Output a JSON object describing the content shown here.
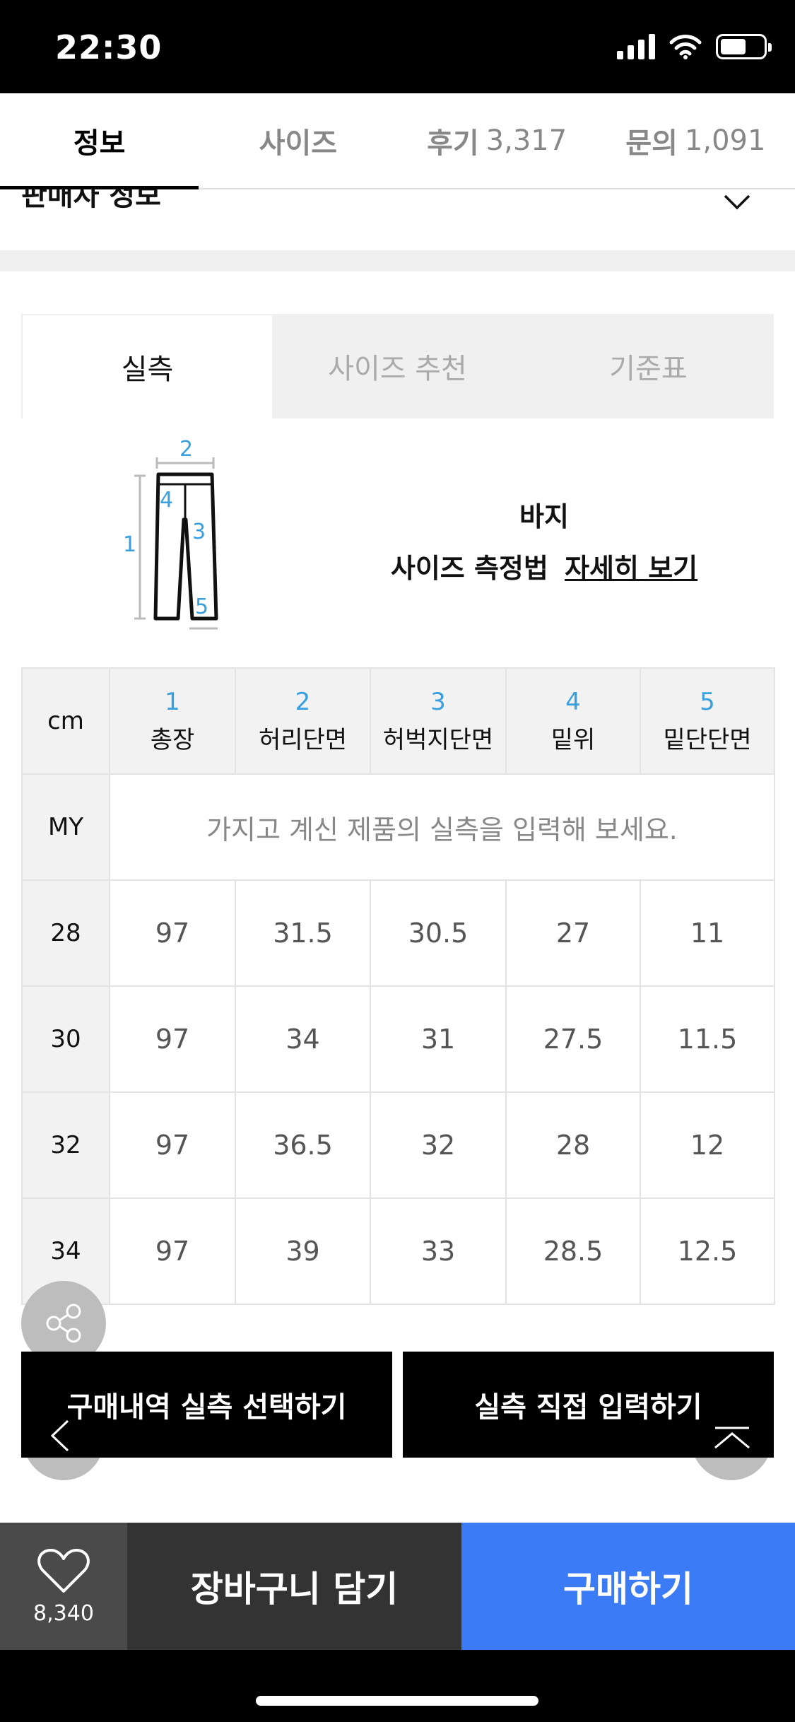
{
  "status": {
    "time": "22:30"
  },
  "tabs": [
    {
      "label": "정보",
      "count": ""
    },
    {
      "label": "사이즈",
      "count": ""
    },
    {
      "label": "후기",
      "count": "3,317"
    },
    {
      "label": "문의",
      "count": "1,091"
    }
  ],
  "partial_section_title": "판매자 정보",
  "size_tabs": [
    "실측",
    "사이즈 추천",
    "기준표"
  ],
  "size_guide": {
    "type": "바지",
    "measure_label": "사이즈 측정법",
    "measure_link": "자세히 보기"
  },
  "diagram_labels": [
    "1",
    "2",
    "3",
    "4",
    "5"
  ],
  "table": {
    "unit_label": "cm",
    "columns": [
      {
        "num": "1",
        "name": "총장"
      },
      {
        "num": "2",
        "name": "허리단면"
      },
      {
        "num": "3",
        "name": "허벅지단면"
      },
      {
        "num": "4",
        "name": "밑위"
      },
      {
        "num": "5",
        "name": "밑단단면"
      }
    ],
    "my_label": "MY",
    "my_placeholder": "가지고 계신 제품의 실측을 입력해 보세요.",
    "rows": [
      {
        "size": "28",
        "values": [
          "97",
          "31.5",
          "30.5",
          "27",
          "11"
        ]
      },
      {
        "size": "30",
        "values": [
          "97",
          "34",
          "31",
          "27.5",
          "11.5"
        ]
      },
      {
        "size": "32",
        "values": [
          "97",
          "36.5",
          "32",
          "28",
          "12"
        ]
      },
      {
        "size": "34",
        "values": [
          "97",
          "39",
          "33",
          "28.5",
          "12.5"
        ]
      }
    ]
  },
  "actions": {
    "select_history": "구매내역 실측 선택하기",
    "direct_input": "실측 직접 입력하기"
  },
  "bottom_bar": {
    "like_count": "8,340",
    "cart_label": "장바구니 담기",
    "buy_label": "구매하기"
  },
  "colors": {
    "accent": "#3b7bf6",
    "measure_number": "#39a0e0"
  }
}
